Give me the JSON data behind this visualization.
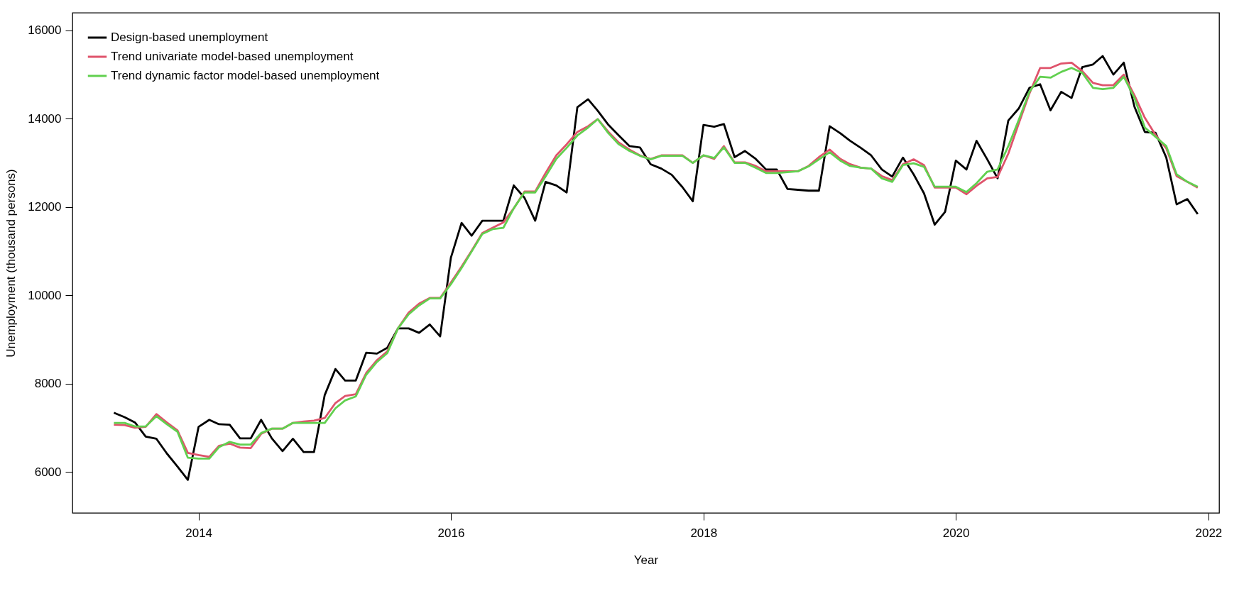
{
  "chart_data": {
    "type": "line",
    "xlabel": "Year",
    "ylabel": "Unemployment (thousand persons)",
    "legend": "top left",
    "line_style": "solid",
    "x": [
      "2013-05",
      "2013-06",
      "2013-07",
      "2013-08",
      "2013-09",
      "2013-10",
      "2013-11",
      "2013-12",
      "2014-01",
      "2014-02",
      "2014-03",
      "2014-04",
      "2014-05",
      "2014-06",
      "2014-07",
      "2014-08",
      "2014-09",
      "2014-10",
      "2014-11",
      "2014-12",
      "2015-01",
      "2015-02",
      "2015-03",
      "2015-04",
      "2015-05",
      "2015-06",
      "2015-07",
      "2015-08",
      "2015-09",
      "2015-10",
      "2015-11",
      "2015-12",
      "2016-01",
      "2016-02",
      "2016-03",
      "2016-04",
      "2016-05",
      "2016-06",
      "2016-07",
      "2016-08",
      "2016-09",
      "2016-10",
      "2016-11",
      "2016-12",
      "2017-01",
      "2017-02",
      "2017-03",
      "2017-04",
      "2017-05",
      "2017-06",
      "2017-07",
      "2017-08",
      "2017-09",
      "2017-10",
      "2017-11",
      "2017-12",
      "2018-01",
      "2018-02",
      "2018-03",
      "2018-04",
      "2018-05",
      "2018-06",
      "2018-07",
      "2018-08",
      "2018-09",
      "2018-10",
      "2018-11",
      "2018-12",
      "2019-01",
      "2019-02",
      "2019-03",
      "2019-04",
      "2019-05",
      "2019-06",
      "2019-07",
      "2019-08",
      "2019-09",
      "2019-10",
      "2019-11",
      "2019-12",
      "2020-01",
      "2020-02",
      "2020-03",
      "2020-04",
      "2020-05",
      "2020-06",
      "2020-07",
      "2020-08",
      "2020-09",
      "2020-10",
      "2020-11",
      "2020-12",
      "2021-01",
      "2021-02",
      "2021-03",
      "2021-04",
      "2021-05",
      "2021-06",
      "2021-07",
      "2021-08",
      "2021-09",
      "2021-10",
      "2021-11",
      "2021-12"
    ],
    "xlim": [
      "2013-01",
      "2022-02"
    ],
    "xticks": [
      "2014",
      "2016",
      "2018",
      "2020",
      "2022"
    ],
    "ylim": [
      5070,
      16400
    ],
    "yticks": [
      6000,
      8000,
      10000,
      12000,
      14000,
      16000
    ],
    "series": [
      {
        "name": "Design-based unemployment",
        "color": "#000000",
        "values": [
          7340,
          7240,
          7120,
          6800,
          6750,
          6420,
          6120,
          5820,
          7020,
          7180,
          7080,
          7070,
          6760,
          6760,
          7180,
          6760,
          6470,
          6750,
          6450,
          6450,
          7740,
          8330,
          8070,
          8070,
          8700,
          8680,
          8810,
          9250,
          9250,
          9150,
          9340,
          9070,
          10850,
          11640,
          11350,
          11690,
          11690,
          11690,
          12490,
          12210,
          11690,
          12570,
          12490,
          12330,
          14260,
          14440,
          14180,
          13860,
          13620,
          13380,
          13350,
          12970,
          12870,
          12730,
          12450,
          12130,
          13860,
          13820,
          13880,
          13130,
          13270,
          13090,
          12850,
          12850,
          12410,
          12390,
          12370,
          12370,
          13830,
          13670,
          13500,
          13340,
          13170,
          12850,
          12690,
          13120,
          12740,
          12310,
          11600,
          11890,
          13050,
          12850,
          13500,
          13080,
          12650,
          13960,
          14230,
          14700,
          14780,
          14190,
          14610,
          14470,
          15170,
          15230,
          15420,
          15000,
          15270,
          14270,
          13700,
          13680,
          13120,
          12060,
          12180,
          11840
        ]
      },
      {
        "name": "Trend univariate model-based unemployment",
        "color": "#df536b",
        "values": [
          7070,
          7060,
          7000,
          7020,
          7310,
          7120,
          6940,
          6430,
          6380,
          6340,
          6590,
          6640,
          6550,
          6540,
          6860,
          6980,
          6980,
          7110,
          7140,
          7160,
          7220,
          7560,
          7720,
          7760,
          8240,
          8530,
          8730,
          9250,
          9610,
          9810,
          9940,
          9940,
          10290,
          10650,
          11010,
          11410,
          11530,
          11650,
          11970,
          12350,
          12350,
          12770,
          13170,
          13420,
          13700,
          13830,
          13990,
          13700,
          13460,
          13300,
          13170,
          13090,
          13170,
          13170,
          13170,
          13000,
          13170,
          13090,
          13380,
          13010,
          13010,
          12930,
          12810,
          12810,
          12810,
          12810,
          12930,
          13130,
          13300,
          13090,
          12970,
          12890,
          12870,
          12700,
          12610,
          12970,
          13080,
          12950,
          12440,
          12440,
          12440,
          12290,
          12480,
          12650,
          12680,
          13210,
          13890,
          14570,
          15150,
          15150,
          15250,
          15270,
          15080,
          14810,
          14760,
          14760,
          15000,
          14530,
          14020,
          13630,
          13330,
          12700,
          12570,
          12440
        ]
      },
      {
        "name": "Trend dynamic factor model-based unemployment",
        "color": "#61d04f",
        "values": [
          7110,
          7110,
          7030,
          7030,
          7260,
          7080,
          6910,
          6320,
          6300,
          6300,
          6560,
          6680,
          6620,
          6620,
          6880,
          6980,
          6980,
          7110,
          7110,
          7110,
          7110,
          7440,
          7620,
          7710,
          8200,
          8490,
          8690,
          9250,
          9570,
          9770,
          9930,
          9930,
          10250,
          10620,
          10990,
          11390,
          11500,
          11530,
          11970,
          12330,
          12330,
          12690,
          13090,
          13340,
          13620,
          13800,
          13990,
          13670,
          13420,
          13270,
          13160,
          13080,
          13160,
          13160,
          13160,
          13000,
          13170,
          13110,
          13350,
          13000,
          13000,
          12890,
          12770,
          12770,
          12790,
          12810,
          12920,
          13080,
          13240,
          13050,
          12930,
          12890,
          12870,
          12650,
          12570,
          12950,
          12990,
          12910,
          12460,
          12460,
          12460,
          12340,
          12540,
          12800,
          12850,
          13380,
          13970,
          14610,
          14950,
          14930,
          15060,
          15150,
          15040,
          14700,
          14670,
          14700,
          14950,
          14470,
          13800,
          13590,
          13380,
          12740,
          12570,
          12460
        ]
      }
    ]
  }
}
